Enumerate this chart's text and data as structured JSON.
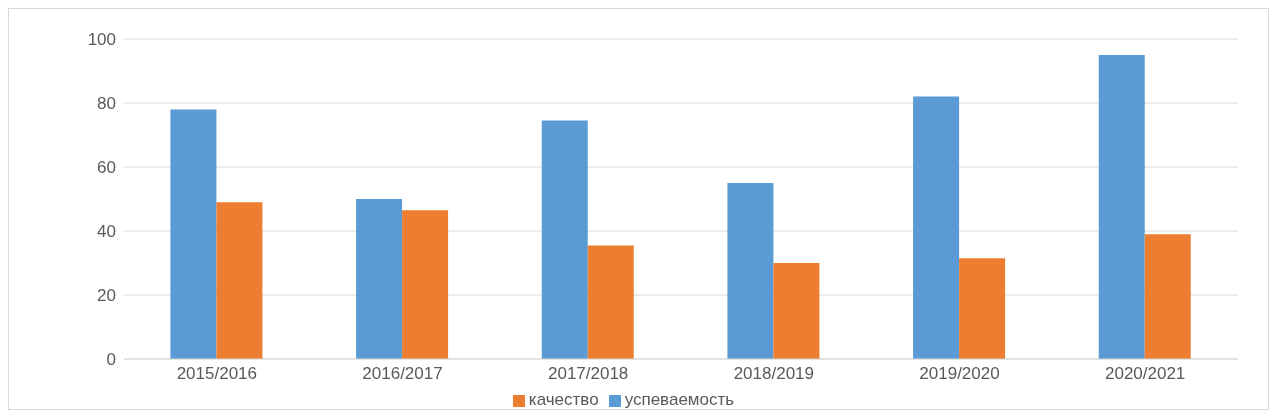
{
  "chart_data": {
    "type": "bar",
    "categories": [
      "2015/2016",
      "2016/2017",
      "2017/2018",
      "2018/2019",
      "2019/2020",
      "2020/2021"
    ],
    "series": [
      {
        "name": "успеваемость",
        "color": "#5b9bd5",
        "values": [
          78,
          50,
          74.5,
          55,
          82,
          95
        ]
      },
      {
        "name": "качество",
        "color": "#ed7d31",
        "values": [
          49,
          46.5,
          35.5,
          30,
          31.5,
          39
        ]
      }
    ],
    "ylim": [
      0,
      100
    ],
    "yticks": [
      0,
      20,
      40,
      60,
      80,
      100
    ],
    "grid": "y",
    "legend": "bottom"
  }
}
